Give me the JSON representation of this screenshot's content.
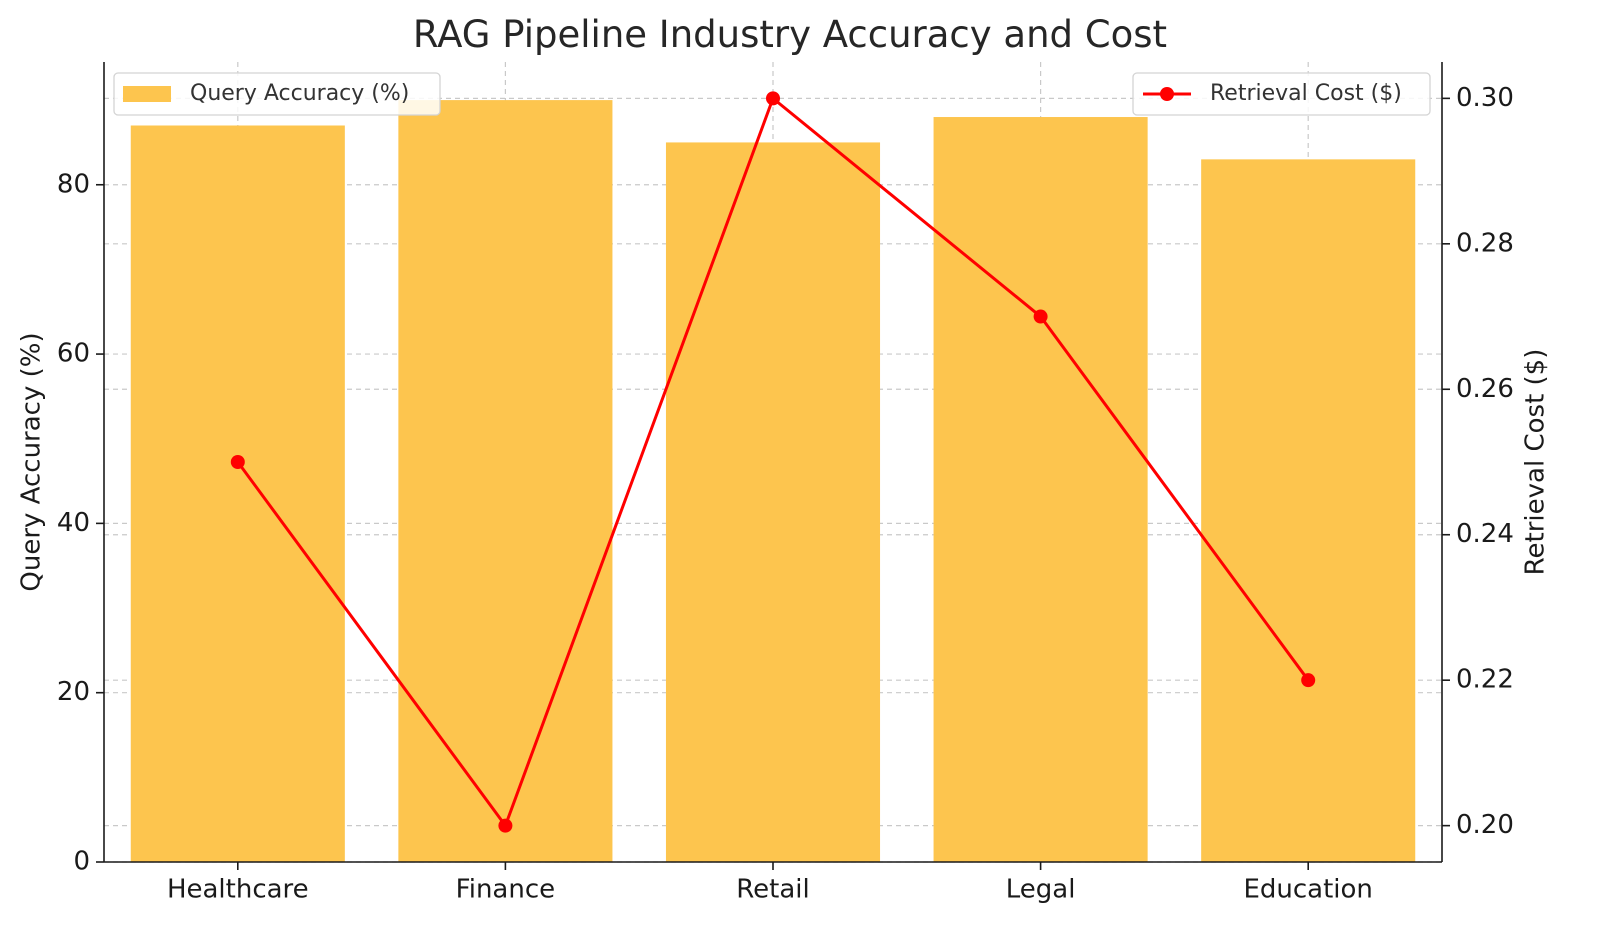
{
  "chart_data": {
    "type": "bar",
    "title": "RAG Pipeline Industry Accuracy and Cost",
    "categories": [
      "Healthcare",
      "Finance",
      "Retail",
      "Legal",
      "Education"
    ],
    "series": [
      {
        "name": "Query Accuracy (%)",
        "type": "bar",
        "axis": "left",
        "color": "#FDC54E",
        "values": [
          87,
          90,
          85,
          88,
          83
        ]
      },
      {
        "name": "Retrieval Cost ($)",
        "type": "line",
        "axis": "right",
        "color": "#FF0000",
        "marker": "circle",
        "values": [
          0.25,
          0.2,
          0.3,
          0.27,
          0.22
        ]
      }
    ],
    "y_left": {
      "label": "Query Accuracy (%)",
      "ylim": [
        0,
        94.5
      ],
      "ticks": [
        0,
        20,
        40,
        60,
        80
      ],
      "tick_labels": [
        "0",
        "20",
        "40",
        "60",
        "80"
      ]
    },
    "y_right": {
      "label": "Retrieval Cost ($)",
      "ylim": [
        0.195,
        0.305
      ],
      "ticks": [
        0.2,
        0.22,
        0.24,
        0.26,
        0.28,
        0.3
      ],
      "tick_labels": [
        "0.20",
        "0.22",
        "0.24",
        "0.26",
        "0.28",
        "0.30"
      ]
    },
    "grid": true,
    "legend": {
      "bar_placement": "upper-left",
      "line_placement": "upper-right"
    }
  }
}
